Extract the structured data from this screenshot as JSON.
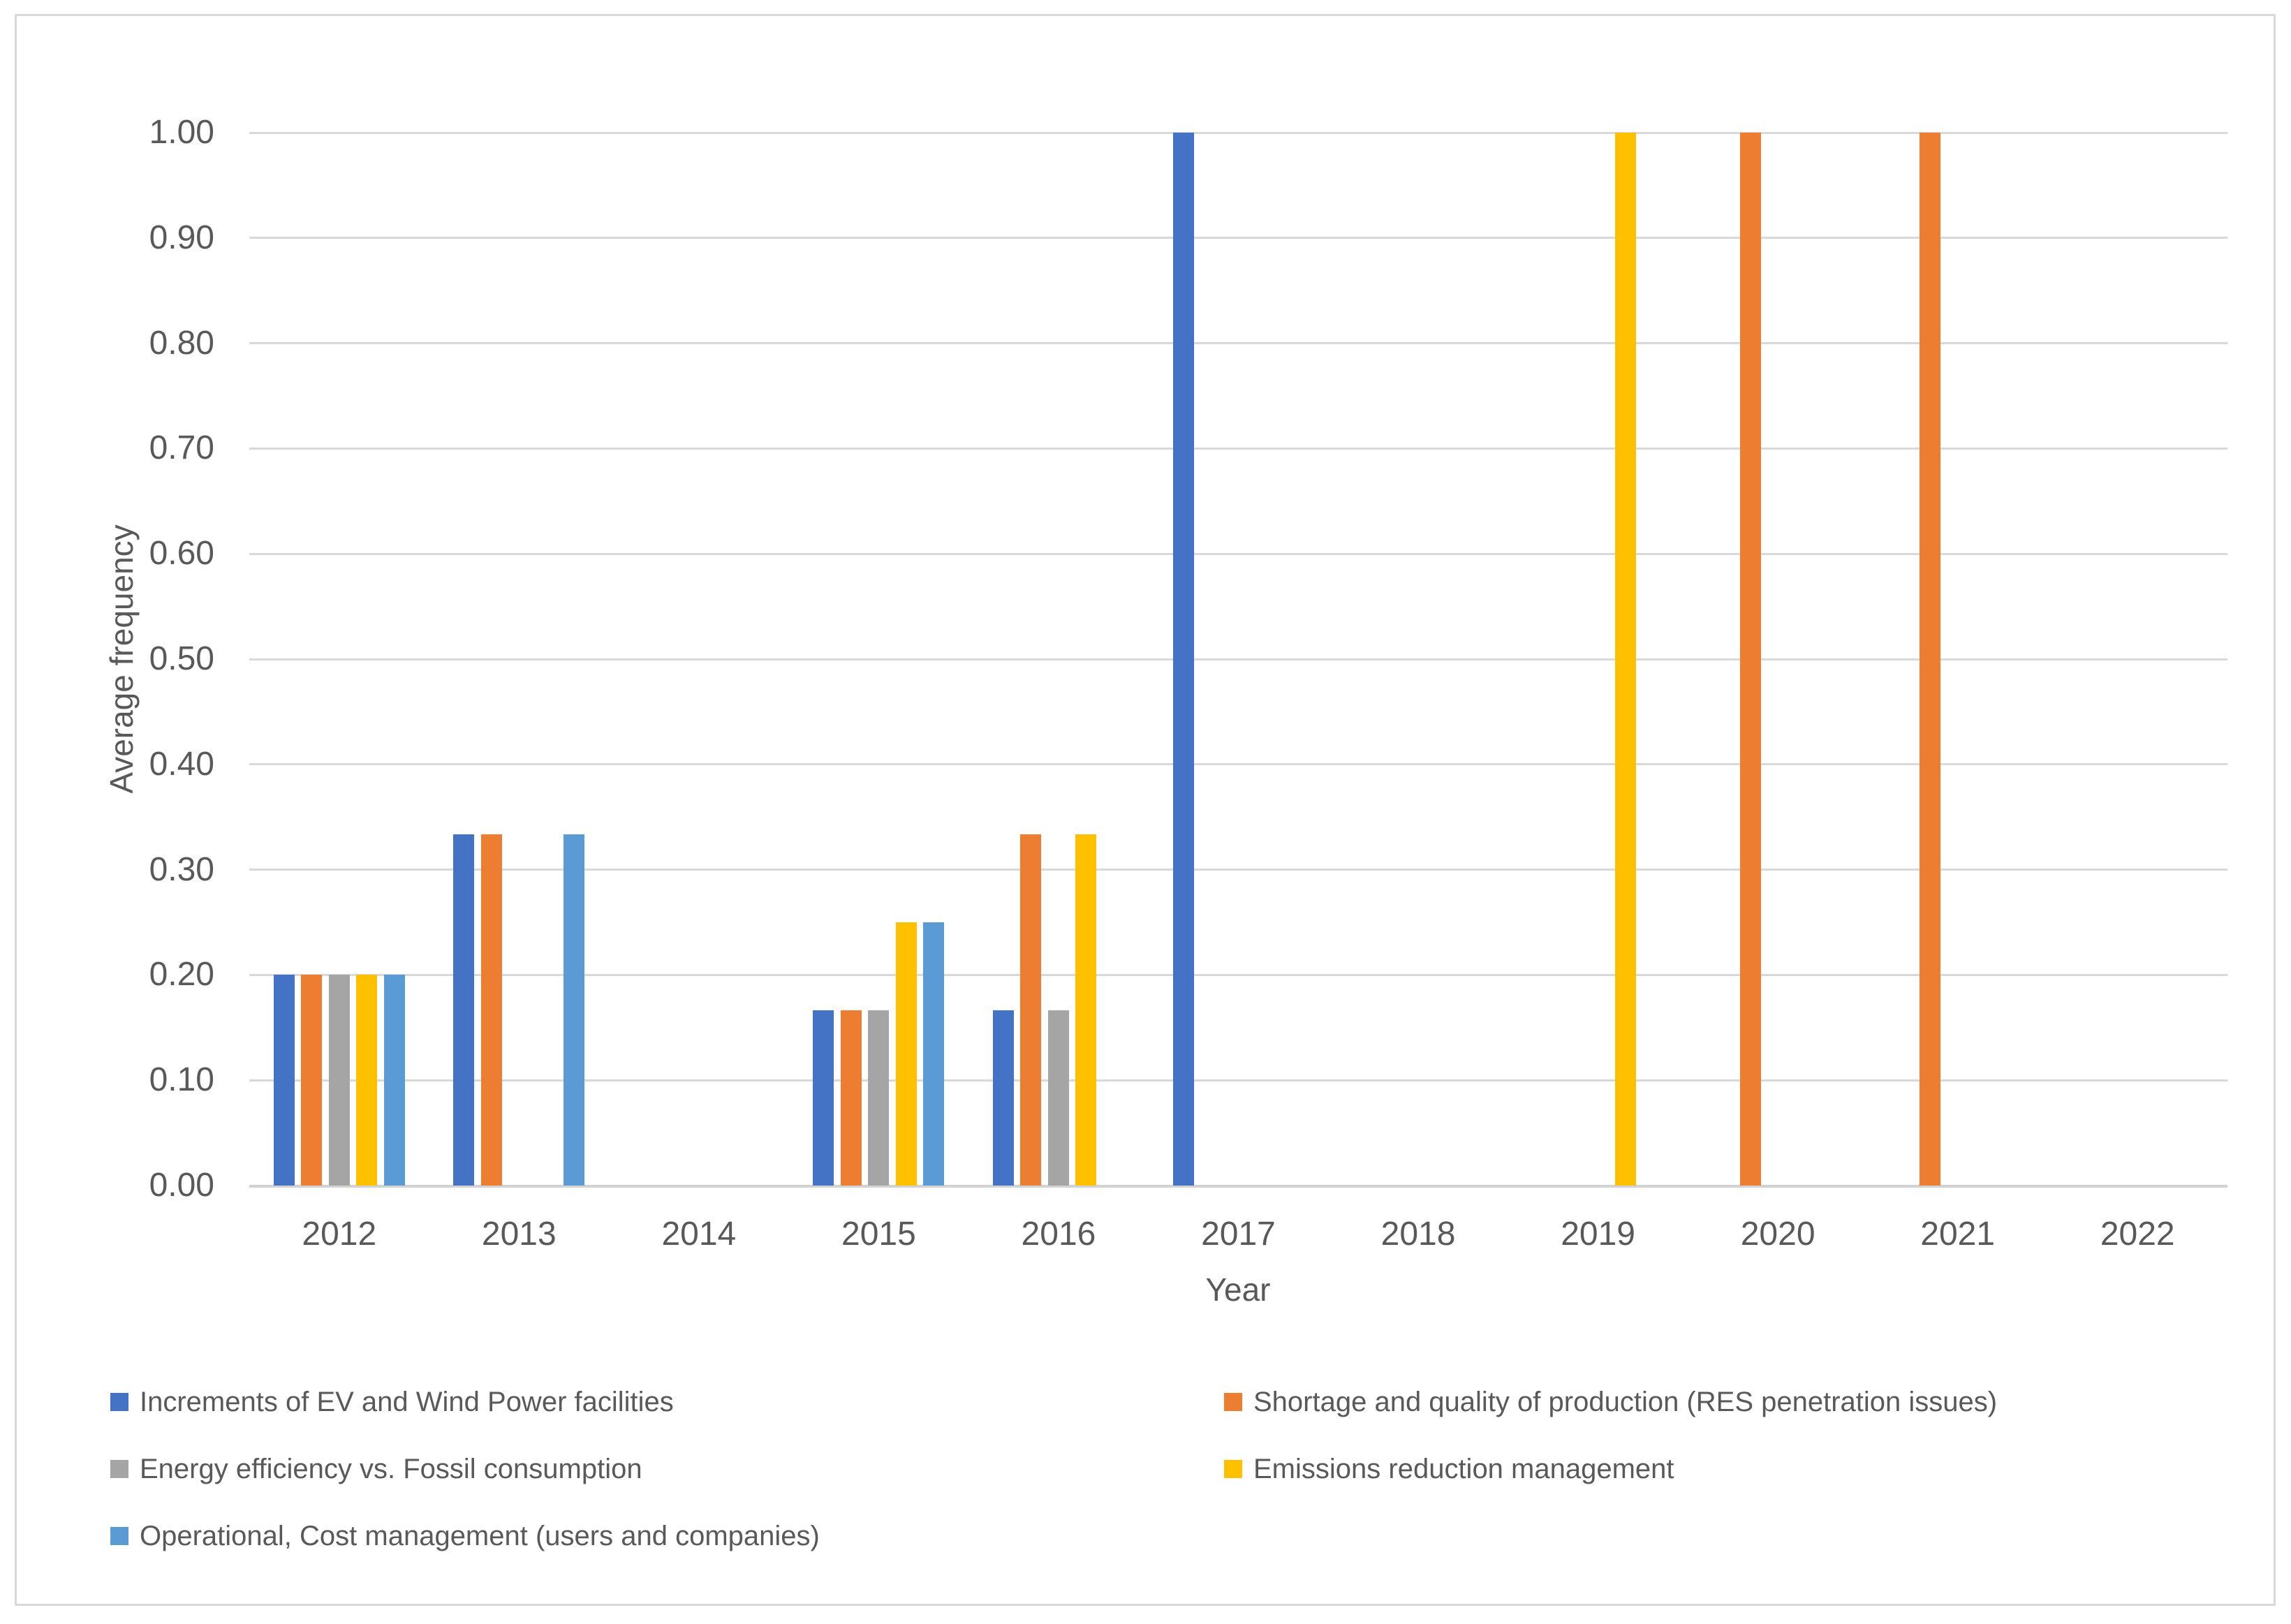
{
  "figure": {
    "background": "#FFFFFF",
    "border_color": "#D9D9D9",
    "text_color": "#595959",
    "gridline_color": "#D9D9D9"
  },
  "chart_data": {
    "type": "bar",
    "title": "",
    "xlabel": "Year",
    "ylabel": "Average frequency",
    "categories": [
      "2012",
      "2013",
      "2014",
      "2015",
      "2016",
      "2017",
      "2018",
      "2019",
      "2020",
      "2021",
      "2022"
    ],
    "series": [
      {
        "name": "Increments of EV and Wind Power facilities",
        "color": "#4472C4",
        "values": [
          0.2,
          0.3333,
          0,
          0.1667,
          0.1667,
          1.0,
          0,
          0,
          0,
          0,
          0
        ]
      },
      {
        "name": "Shortage and quality of production (RES penetration issues)",
        "color": "#ED7D31",
        "values": [
          0.2,
          0.3333,
          0,
          0.1667,
          0.3333,
          0,
          0,
          0,
          1.0,
          1.0,
          0
        ]
      },
      {
        "name": "Energy efficiency vs. Fossil consumption",
        "color": "#A5A5A5",
        "values": [
          0.2,
          0,
          0,
          0.1667,
          0.1667,
          0,
          0,
          0,
          0,
          0,
          0
        ]
      },
      {
        "name": "Emissions reduction management",
        "color": "#FFC000",
        "values": [
          0.2,
          0,
          0,
          0.25,
          0.3333,
          0,
          0,
          1.0,
          0,
          0,
          0
        ]
      },
      {
        "name": "Operational, Cost management (users and companies)",
        "color": "#5B9BD5",
        "values": [
          0.2,
          0.3333,
          0,
          0.25,
          0,
          0,
          0,
          0,
          0,
          0,
          0
        ]
      }
    ],
    "y_axis": {
      "min": 0.0,
      "max": 1.0,
      "step": 0.1,
      "tick_labels": [
        "1.00",
        "0.90",
        "0.80",
        "0.70",
        "0.60",
        "0.50",
        "0.40",
        "0.30",
        "0.20",
        "0.10",
        "0.00"
      ]
    },
    "grid": true,
    "legend_position": "bottom-two-columns"
  }
}
